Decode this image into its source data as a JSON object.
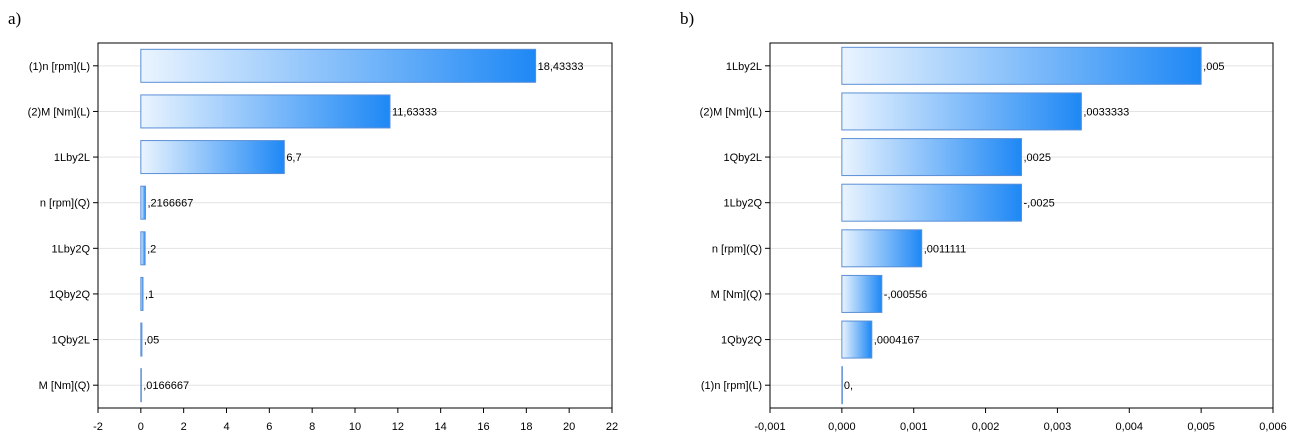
{
  "chart_data": [
    {
      "panel_label": "a)",
      "type": "bar",
      "orientation": "horizontal",
      "categories": [
        "(1)n [rpm](L)",
        "(2)M [Nm](L)",
        "1Lby2L",
        "n [rpm](Q)",
        "1Lby2Q",
        "1Qby2Q",
        "1Qby2L",
        "M [Nm](Q)"
      ],
      "values": [
        18.43333,
        11.63333,
        6.7,
        0.2166667,
        0.2,
        0.1,
        0.05,
        0.0166667
      ],
      "value_labels": [
        "18,43333",
        "11,63333",
        "6,7",
        ",2166667",
        ",2",
        ",1",
        ",05",
        ",0166667"
      ],
      "xlim": [
        -2,
        22
      ],
      "xticks": [
        -2,
        0,
        2,
        4,
        6,
        8,
        10,
        12,
        14,
        16,
        18,
        20,
        22
      ],
      "xtick_labels": [
        "-2",
        "0",
        "2",
        "4",
        "6",
        "8",
        "10",
        "12",
        "14",
        "16",
        "18",
        "20",
        "22"
      ],
      "title": "",
      "xlabel": "",
      "ylabel": "",
      "grid": true,
      "colors": {
        "bar_light": "#eaf4ff",
        "bar_dark": "#1e88f5",
        "bar_border": "#5b8fd6"
      }
    },
    {
      "panel_label": "b)",
      "type": "bar",
      "orientation": "horizontal",
      "categories": [
        "1Lby2L",
        "(2)M [Nm](L)",
        "1Qby2L",
        "1Lby2Q",
        "n [rpm](Q)",
        "M [Nm](Q)",
        "1Qby2Q",
        "(1)n [rpm](L)"
      ],
      "values": [
        0.005,
        0.0033333,
        0.0025,
        0.0025,
        0.0011111,
        0.000556,
        0.0004167,
        0
      ],
      "value_labels": [
        ",005",
        ",0033333",
        ",0025",
        "-,0025",
        ",0011111",
        "-,000556",
        ",0004167",
        "0,"
      ],
      "xlim": [
        -0.001,
        0.006
      ],
      "xticks": [
        -0.001,
        0,
        0.001,
        0.002,
        0.003,
        0.004,
        0.005,
        0.006
      ],
      "xtick_labels": [
        "-0,001",
        "0,000",
        "0,001",
        "0,002",
        "0,003",
        "0,004",
        "0,005",
        "0,006"
      ],
      "title": "",
      "xlabel": "",
      "ylabel": "",
      "grid": true,
      "colors": {
        "bar_light": "#eaf4ff",
        "bar_dark": "#1e88f5",
        "bar_border": "#5b8fd6"
      }
    }
  ]
}
